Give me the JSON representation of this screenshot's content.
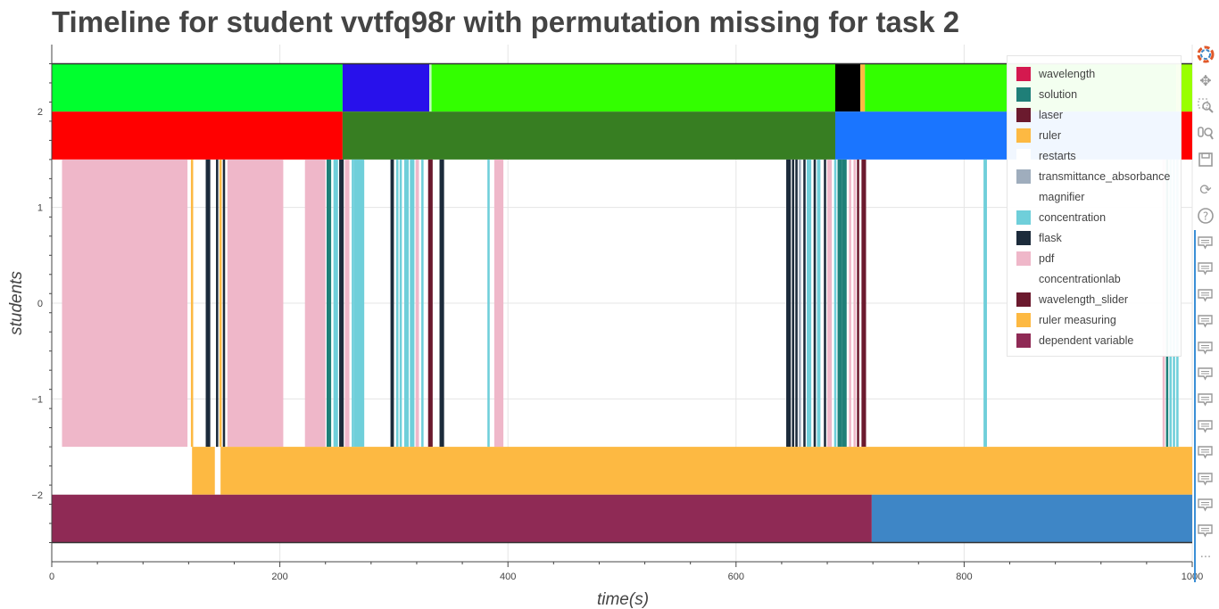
{
  "title": "Timeline for student vvtfq98r with permutation missing for task 2",
  "chart_data": {
    "type": "bar",
    "title": "Timeline for student vvtfq98r with permutation missing for task 2",
    "xlabel": "time(s)",
    "ylabel": "students",
    "xlim": [
      0,
      1000
    ],
    "ylim": [
      -2.7,
      2.7
    ],
    "xticks": [
      0,
      200,
      400,
      600,
      800,
      1000
    ],
    "xtick_labels": [
      "0",
      "200",
      "400",
      "600",
      "800",
      "1000"
    ],
    "yticks": [
      2,
      1,
      0,
      -1,
      -2
    ],
    "ytick_labels": [
      "2",
      "1",
      "0",
      "−1",
      "−2"
    ],
    "grid": true,
    "legend_position": "top-right",
    "legend": [
      {
        "name": "wavelength",
        "color": "#d4194f"
      },
      {
        "name": "solution",
        "color": "#1f7f78"
      },
      {
        "name": "laser",
        "color": "#6b1a2e"
      },
      {
        "name": "ruler",
        "color": "#fdb942"
      },
      {
        "name": "restarts",
        "color": "#ffffff"
      },
      {
        "name": "transmittance_absorbance",
        "color": "#9fadbd"
      },
      {
        "name": "magnifier",
        "color": "#ffffff"
      },
      {
        "name": "concentration",
        "color": "#6fcfda"
      },
      {
        "name": "flask",
        "color": "#1c2b3b"
      },
      {
        "name": "pdf",
        "color": "#efb7c9"
      },
      {
        "name": "concentrationlab",
        "color": "#ffffff"
      },
      {
        "name": "wavelength_slider",
        "color": "#6b1a2e"
      },
      {
        "name": "ruler measuring",
        "color": "#fdb942"
      },
      {
        "name": "dependent variable",
        "color": "#8f2a55"
      }
    ],
    "bars": [
      {
        "y0": 2,
        "y1": 2.5,
        "x0": 0,
        "x1": 255,
        "color": "#00ff2e"
      },
      {
        "y0": 2,
        "y1": 2.5,
        "x0": 255,
        "x1": 331,
        "color": "#2811eb"
      },
      {
        "y0": 2,
        "y1": 2.5,
        "x0": 331,
        "x1": 333,
        "color": "#bfffbf"
      },
      {
        "y0": 2,
        "y1": 2.5,
        "x0": 333,
        "x1": 687,
        "color": "#33ff00"
      },
      {
        "y0": 2,
        "y1": 2.5,
        "x0": 687,
        "x1": 709,
        "color": "#000000"
      },
      {
        "y0": 2,
        "y1": 2.5,
        "x0": 709,
        "x1": 713,
        "color": "#fdb942"
      },
      {
        "y0": 2,
        "y1": 2.5,
        "x0": 713,
        "x1": 986,
        "color": "#33ff00"
      },
      {
        "y0": 2,
        "y1": 2.5,
        "x0": 986,
        "x1": 1000,
        "color": "#99ff00"
      },
      {
        "y0": 1.5,
        "y1": 2,
        "x0": 0,
        "x1": 255,
        "color": "#ff0000"
      },
      {
        "y0": 1.5,
        "y1": 2,
        "x0": 255,
        "x1": 687,
        "color": "#377e22"
      },
      {
        "y0": 1.5,
        "y1": 2,
        "x0": 687,
        "x1": 990,
        "color": "#1a75ff"
      },
      {
        "y0": 1.5,
        "y1": 2,
        "x0": 990,
        "x1": 1000,
        "color": "#ff0000"
      },
      {
        "y0": -1.5,
        "y1": 1.5,
        "x0": 9,
        "x1": 119,
        "color": "#efb7c9"
      },
      {
        "y0": -1.5,
        "y1": 1.5,
        "x0": 122,
        "x1": 124,
        "color": "#fdb942"
      },
      {
        "y0": -1.5,
        "y1": 1.5,
        "x0": 135,
        "x1": 139,
        "color": "#1c2b3b"
      },
      {
        "y0": -1.5,
        "y1": 1.5,
        "x0": 144,
        "x1": 146,
        "color": "#1c2b3b"
      },
      {
        "y0": -1.5,
        "y1": 1.5,
        "x0": 147,
        "x1": 149,
        "color": "#fdb942"
      },
      {
        "y0": -1.5,
        "y1": 1.5,
        "x0": 150,
        "x1": 152,
        "color": "#1c2b3b"
      },
      {
        "y0": -1.5,
        "y1": 1.5,
        "x0": 154,
        "x1": 203,
        "color": "#efb7c9"
      },
      {
        "y0": -1.5,
        "y1": 1.5,
        "x0": 222,
        "x1": 240,
        "color": "#efb7c9"
      },
      {
        "y0": -1.5,
        "y1": 1.5,
        "x0": 241,
        "x1": 245,
        "color": "#1f7f78"
      },
      {
        "y0": -1.5,
        "y1": 1.5,
        "x0": 247,
        "x1": 251,
        "color": "#6fcfda"
      },
      {
        "y0": -1.5,
        "y1": 1.5,
        "x0": 252,
        "x1": 256,
        "color": "#1c2b3b"
      },
      {
        "y0": -1.5,
        "y1": 1.5,
        "x0": 257,
        "x1": 261,
        "color": "#efb7c9"
      },
      {
        "y0": -1.5,
        "y1": 1.5,
        "x0": 263,
        "x1": 265,
        "color": "#6fcfda"
      },
      {
        "y0": -1.5,
        "y1": 1.5,
        "x0": 265,
        "x1": 274,
        "color": "#6fcfda"
      },
      {
        "y0": -1.5,
        "y1": 1.5,
        "x0": 297,
        "x1": 300,
        "color": "#1c2b3b"
      },
      {
        "y0": -1.5,
        "y1": 1.5,
        "x0": 302,
        "x1": 304,
        "color": "#6fcfda"
      },
      {
        "y0": -1.5,
        "y1": 1.5,
        "x0": 305,
        "x1": 307,
        "color": "#6fcfda"
      },
      {
        "y0": -1.5,
        "y1": 1.5,
        "x0": 309,
        "x1": 313,
        "color": "#6fcfda"
      },
      {
        "y0": -1.5,
        "y1": 1.5,
        "x0": 314,
        "x1": 318,
        "color": "#6fcfda"
      },
      {
        "y0": -1.5,
        "y1": 1.5,
        "x0": 319,
        "x1": 322,
        "color": "#efb7c9"
      },
      {
        "y0": -1.5,
        "y1": 1.5,
        "x0": 324,
        "x1": 326,
        "color": "#6fcfda"
      },
      {
        "y0": -1.5,
        "y1": 1.5,
        "x0": 330,
        "x1": 334,
        "color": "#6b1a2e"
      },
      {
        "y0": -1.5,
        "y1": 1.5,
        "x0": 340,
        "x1": 344,
        "color": "#1c2b3b"
      },
      {
        "y0": -1.5,
        "y1": 1.5,
        "x0": 382,
        "x1": 384,
        "color": "#6fcfda"
      },
      {
        "y0": -1.5,
        "y1": 1.5,
        "x0": 388,
        "x1": 396,
        "color": "#efb7c9"
      },
      {
        "y0": -1.5,
        "y1": 1.5,
        "x0": 644,
        "x1": 648,
        "color": "#1c2b3b"
      },
      {
        "y0": -1.5,
        "y1": 1.5,
        "x0": 649,
        "x1": 651,
        "color": "#1c2b3b"
      },
      {
        "y0": -1.5,
        "y1": 1.5,
        "x0": 652,
        "x1": 654,
        "color": "#1c2b3b"
      },
      {
        "y0": -1.5,
        "y1": 1.5,
        "x0": 655,
        "x1": 657,
        "color": "#9fadbd"
      },
      {
        "y0": -1.5,
        "y1": 1.5,
        "x0": 659,
        "x1": 661,
        "color": "#1c2b3b"
      },
      {
        "y0": -1.5,
        "y1": 1.5,
        "x0": 662,
        "x1": 666,
        "color": "#6fcfda"
      },
      {
        "y0": -1.5,
        "y1": 1.5,
        "x0": 668,
        "x1": 670,
        "color": "#1c2b3b"
      },
      {
        "y0": -1.5,
        "y1": 1.5,
        "x0": 671,
        "x1": 674,
        "color": "#6fcfda"
      },
      {
        "y0": -1.5,
        "y1": 1.5,
        "x0": 677,
        "x1": 679,
        "color": "#1c2b3b"
      },
      {
        "y0": -1.5,
        "y1": 1.5,
        "x0": 680,
        "x1": 684,
        "color": "#efb7c9"
      },
      {
        "y0": -1.5,
        "y1": 1.5,
        "x0": 686,
        "x1": 688,
        "color": "#6fcfda"
      },
      {
        "y0": -1.5,
        "y1": 1.5,
        "x0": 689,
        "x1": 693,
        "color": "#1f7f78"
      },
      {
        "y0": -1.5,
        "y1": 1.5,
        "x0": 693,
        "x1": 697,
        "color": "#1f7f78"
      },
      {
        "y0": -1.5,
        "y1": 1.5,
        "x0": 699,
        "x1": 701,
        "color": "#efb7c9"
      },
      {
        "y0": -1.5,
        "y1": 1.5,
        "x0": 703,
        "x1": 705,
        "color": "#efb7c9"
      },
      {
        "y0": -1.5,
        "y1": 1.5,
        "x0": 706,
        "x1": 708,
        "color": "#6b1a2e"
      },
      {
        "y0": -1.5,
        "y1": 1.5,
        "x0": 710,
        "x1": 714,
        "color": "#6b1a2e"
      },
      {
        "y0": -1.5,
        "y1": 1.5,
        "x0": 817,
        "x1": 820,
        "color": "#6fcfda"
      },
      {
        "y0": -1.5,
        "y1": 1.5,
        "x0": 974,
        "x1": 976,
        "color": "#efb7c9"
      },
      {
        "y0": -1.5,
        "y1": 1.5,
        "x0": 977,
        "x1": 979,
        "color": "#1f7f78"
      },
      {
        "y0": -1.5,
        "y1": 1.5,
        "x0": 980,
        "x1": 982,
        "color": "#6fcfda"
      },
      {
        "y0": -1.5,
        "y1": 1.5,
        "x0": 983,
        "x1": 985,
        "color": "#6fcfda"
      },
      {
        "y0": -1.5,
        "y1": 1.5,
        "x0": 986,
        "x1": 988,
        "color": "#6fcfda"
      },
      {
        "y0": -2,
        "y1": -1.5,
        "x0": 123,
        "x1": 143,
        "color": "#fdb942"
      },
      {
        "y0": -2,
        "y1": -1.5,
        "x0": 148,
        "x1": 1000,
        "color": "#fdb942"
      },
      {
        "y0": -2.5,
        "y1": -2,
        "x0": 0,
        "x1": 719,
        "color": "#8f2a55"
      },
      {
        "y0": -2.5,
        "y1": -2,
        "x0": 719,
        "x1": 1000,
        "color": "#3e86c6"
      }
    ]
  }
}
